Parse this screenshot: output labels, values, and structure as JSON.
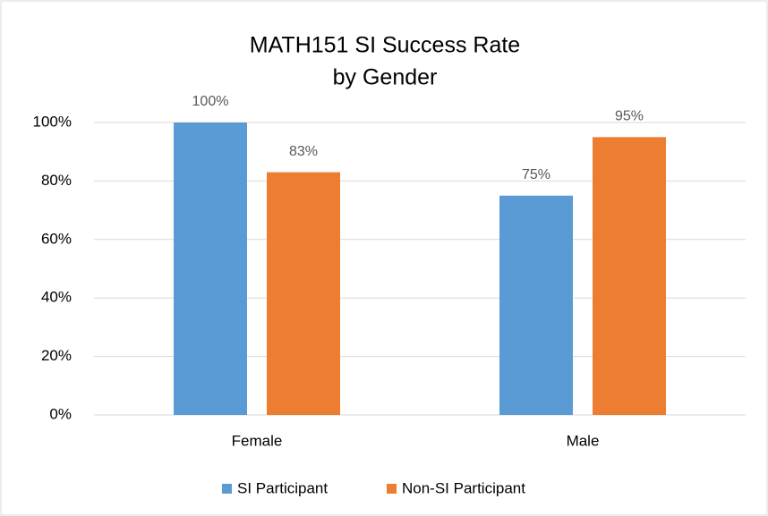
{
  "chart_data": {
    "type": "bar",
    "title": [
      "MATH151 SI Success  Rate",
      "by Gender"
    ],
    "categories": [
      "Female",
      "Male"
    ],
    "series": [
      {
        "name": "SI Participant",
        "color": "#5b9bd5",
        "values": [
          100,
          75
        ],
        "value_labels": [
          "100%",
          "75%"
        ]
      },
      {
        "name": "Non-SI Participant",
        "color": "#ed7d31",
        "values": [
          83,
          95
        ],
        "value_labels": [
          "83%",
          "95%"
        ]
      }
    ],
    "ylim": [
      0,
      100
    ],
    "yticks": [
      {
        "value": 0,
        "label": "0%"
      },
      {
        "value": 20,
        "label": "20%"
      },
      {
        "value": 40,
        "label": "40%"
      },
      {
        "value": 60,
        "label": "60%"
      },
      {
        "value": 80,
        "label": "80%"
      },
      {
        "value": 100,
        "label": "100%"
      }
    ],
    "grid": true,
    "legend": "bottom"
  }
}
